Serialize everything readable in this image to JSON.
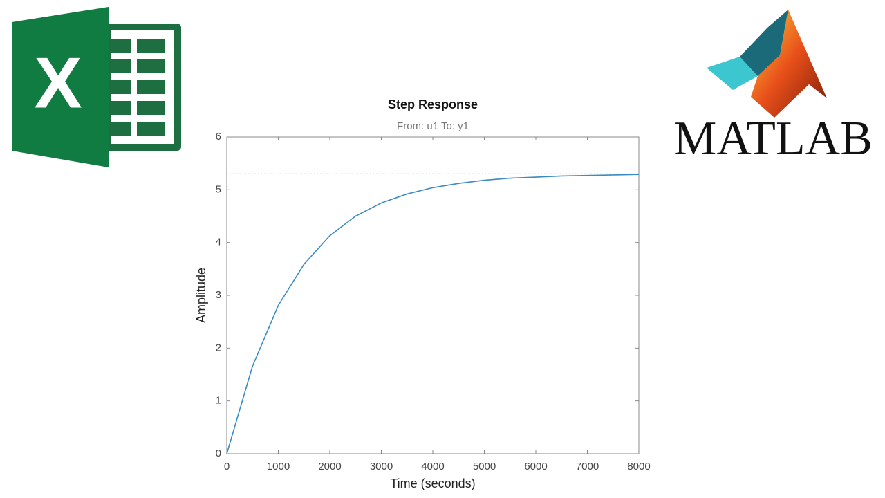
{
  "logos": {
    "excel": "X",
    "matlab": "MATLAB"
  },
  "chart_data": {
    "type": "line",
    "title": "Step Response",
    "subtitle": "From: u1 To: y1",
    "xlabel": "Time (seconds)",
    "ylabel": "Amplitude",
    "x": [
      0,
      500,
      1000,
      1500,
      2000,
      2500,
      3000,
      3500,
      4000,
      4500,
      5000,
      5500,
      6000,
      6500,
      7000,
      7500,
      8000
    ],
    "series": [
      {
        "color": "#3a8bc2",
        "values": [
          0,
          1.66,
          2.81,
          3.59,
          4.13,
          4.5,
          4.75,
          4.92,
          5.04,
          5.12,
          5.18,
          5.22,
          5.24,
          5.26,
          5.27,
          5.28,
          5.29
        ]
      }
    ],
    "steady_state": 5.3,
    "xlim": [
      0,
      8000
    ],
    "xticks": [
      0,
      1000,
      2000,
      3000,
      4000,
      5000,
      6000,
      7000,
      8000
    ],
    "ylim": [
      0,
      6
    ],
    "yticks": [
      0,
      1,
      2,
      3,
      4,
      5,
      6
    ]
  }
}
